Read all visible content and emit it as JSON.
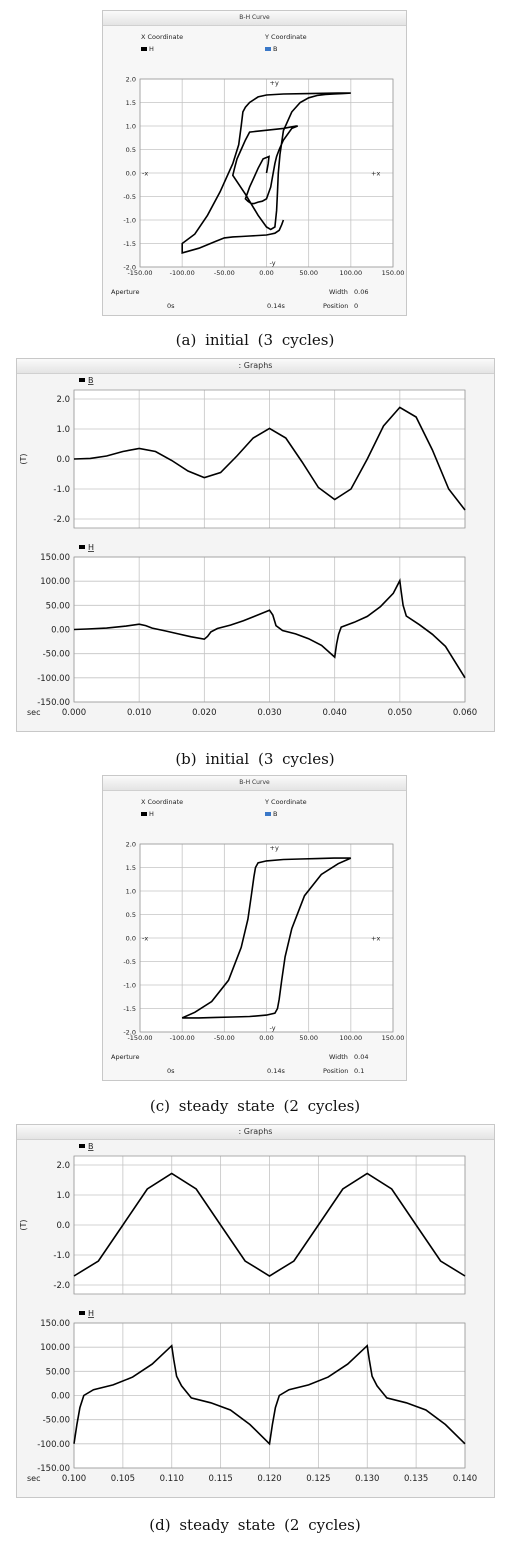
{
  "panels": {
    "a": {
      "header": "B-H Curve",
      "legend": {
        "x_label": "X Coordinate",
        "x_series": "H",
        "y_label": "Y Coordinate",
        "y_series": "B",
        "colors": {
          "H": "#000000",
          "B": "#3a78c8"
        }
      },
      "axis_markers": {
        "pos_y": "+y",
        "neg_y": "-y",
        "pos_x": "+x",
        "neg_x": "-x"
      },
      "footer": {
        "aperture": "Aperture",
        "width_label": "Width",
        "width_value": "0.06",
        "time_start": "0s",
        "time_end": "0.14s",
        "position_label": "Position",
        "position_value": "0"
      },
      "caption": "(a) initial (3 cycles)"
    },
    "b": {
      "header": ": Graphs",
      "top_series": "B",
      "bottom_series": "H",
      "unit_label": "(T)",
      "x_axis_label": "sec",
      "caption": "(b) initial (3 cycles)"
    },
    "c": {
      "header": "B-H Curve",
      "legend": {
        "x_label": "X Coordinate",
        "x_series": "H",
        "y_label": "Y Coordinate",
        "y_series": "B",
        "colors": {
          "H": "#000000",
          "B": "#3a78c8"
        }
      },
      "axis_markers": {
        "pos_y": "+y",
        "neg_y": "-y",
        "pos_x": "+x",
        "neg_x": "-x"
      },
      "footer": {
        "aperture": "Aperture",
        "width_label": "Width",
        "width_value": "0.04",
        "time_start": "0s",
        "time_end": "0.14s",
        "position_label": "Position",
        "position_value": "0.1"
      },
      "caption": "(c) steady state (2 cycles)"
    },
    "d": {
      "header": ": Graphs",
      "top_series": "B",
      "bottom_series": "H",
      "unit_label": "(T)",
      "x_axis_label": "sec",
      "caption": "(d) steady state (2 cycles)"
    }
  },
  "chart_data": [
    {
      "id": "a",
      "type": "line",
      "subtype": "bh-loop",
      "xlim": [
        -150,
        150
      ],
      "ylim": [
        -2.0,
        2.0
      ],
      "x_ticks": [
        "-150.00",
        "-100.00",
        "-50.00",
        "0.00",
        "50.00",
        "100.00",
        "150.00"
      ],
      "y_ticks": [
        "2.0",
        "1.5",
        "1.0",
        "0.5",
        "0.0",
        "-0.5",
        "-1.0",
        "-1.5",
        "-2.0"
      ],
      "grid": true,
      "series": [
        {
          "x": [
            0,
            2,
            3,
            -4,
            -10,
            -15,
            -20,
            -25,
            -22,
            -18,
            -15,
            -10,
            -5,
            0,
            5,
            8,
            10,
            12,
            15,
            20,
            30,
            37,
            35,
            20,
            -5,
            -20,
            -25,
            -30,
            -35,
            -38,
            -40,
            -25,
            -10,
            0,
            5,
            10,
            12,
            13,
            14,
            16,
            20,
            30,
            40,
            50,
            60,
            70,
            80,
            90,
            100,
            85,
            50,
            20,
            0,
            -10,
            -20,
            -25,
            -28,
            -30,
            -33,
            -40,
            -55,
            -70,
            -85,
            -100,
            -100,
            -80,
            -60,
            -50,
            -40,
            -30,
            -20,
            -10,
            0,
            5,
            10,
            15,
            18,
            20
          ],
          "y": [
            0.0,
            0.2,
            0.35,
            0.3,
            0.1,
            -0.1,
            -0.3,
            -0.55,
            -0.6,
            -0.65,
            -0.65,
            -0.62,
            -0.6,
            -0.55,
            -0.3,
            0.0,
            0.2,
            0.35,
            0.5,
            0.7,
            0.95,
            1.0,
            1.0,
            0.95,
            0.9,
            0.87,
            0.7,
            0.5,
            0.3,
            0.1,
            -0.05,
            -0.45,
            -0.9,
            -1.15,
            -1.2,
            -1.15,
            -0.8,
            -0.4,
            0.0,
            0.4,
            0.9,
            1.3,
            1.5,
            1.6,
            1.65,
            1.67,
            1.68,
            1.69,
            1.7,
            1.7,
            1.69,
            1.68,
            1.66,
            1.62,
            1.5,
            1.4,
            1.3,
            1.0,
            0.6,
            0.2,
            -0.4,
            -0.9,
            -1.3,
            -1.5,
            -1.7,
            -1.6,
            -1.45,
            -1.38,
            -1.36,
            -1.35,
            -1.34,
            -1.33,
            -1.32,
            -1.3,
            -1.28,
            -1.22,
            -1.1,
            -1.0
          ]
        }
      ]
    },
    {
      "id": "b_top",
      "type": "line",
      "xlim": [
        0,
        0.06
      ],
      "ylim": [
        -2.3,
        2.3
      ],
      "y_ticks": [
        "2.0",
        "1.0",
        "0.0",
        "-1.0",
        "-2.0"
      ],
      "grid": true,
      "series": [
        {
          "name": "B",
          "x": [
            0,
            0.0025,
            0.005,
            0.0075,
            0.01,
            0.0125,
            0.015,
            0.0175,
            0.02,
            0.0225,
            0.025,
            0.0275,
            0.03,
            0.0325,
            0.035,
            0.0375,
            0.04,
            0.0425,
            0.045,
            0.0475,
            0.05,
            0.0525,
            0.055,
            0.0575,
            0.06
          ],
          "y": [
            0.0,
            0.02,
            0.1,
            0.25,
            0.35,
            0.25,
            -0.05,
            -0.4,
            -0.62,
            -0.45,
            0.1,
            0.7,
            1.02,
            0.7,
            -0.1,
            -0.95,
            -1.35,
            -1.0,
            0.0,
            1.1,
            1.72,
            1.4,
            0.3,
            -1.0,
            -1.7
          ]
        }
      ]
    },
    {
      "id": "b_bottom",
      "type": "line",
      "xlim": [
        0,
        0.06
      ],
      "ylim": [
        -150,
        150
      ],
      "x_ticks": [
        "0.000",
        "0.010",
        "0.020",
        "0.030",
        "0.040",
        "0.050",
        "0.060"
      ],
      "y_ticks": [
        "150.00",
        "100.00",
        "50.00",
        "0.00",
        "-50.00",
        "-100.00",
        "-150.00"
      ],
      "grid": true,
      "series": [
        {
          "name": "H",
          "x": [
            0,
            0.002,
            0.005,
            0.008,
            0.01,
            0.011,
            0.012,
            0.014,
            0.016,
            0.018,
            0.02,
            0.0205,
            0.021,
            0.022,
            0.024,
            0.026,
            0.028,
            0.03,
            0.0305,
            0.031,
            0.032,
            0.034,
            0.036,
            0.038,
            0.04,
            0.0403,
            0.0406,
            0.041,
            0.043,
            0.045,
            0.047,
            0.049,
            0.05,
            0.0502,
            0.0505,
            0.051,
            0.053,
            0.055,
            0.057,
            0.06
          ],
          "y": [
            0,
            1,
            3,
            7,
            11,
            8,
            3,
            -3,
            -9,
            -15,
            -20,
            -14,
            -5,
            2,
            9,
            18,
            29,
            40,
            30,
            8,
            -2,
            -9,
            -19,
            -33,
            -57,
            -30,
            -10,
            5,
            15,
            27,
            47,
            75,
            101,
            80,
            50,
            28,
            10,
            -10,
            -35,
            -100
          ]
        }
      ]
    },
    {
      "id": "c",
      "type": "line",
      "subtype": "bh-loop",
      "xlim": [
        -150,
        150
      ],
      "ylim": [
        -2.0,
        2.0
      ],
      "x_ticks": [
        "-150.00",
        "-100.00",
        "-50.00",
        "0.00",
        "50.00",
        "100.00",
        "150.00"
      ],
      "y_ticks": [
        "2.0",
        "1.5",
        "1.0",
        "0.5",
        "0.0",
        "-0.5",
        "-1.0",
        "-1.5",
        "-2.0"
      ],
      "grid": true,
      "series": [
        {
          "x": [
            100,
            80,
            60,
            40,
            20,
            0,
            -10,
            -13,
            -15,
            -18,
            -22,
            -30,
            -45,
            -65,
            -85,
            -100,
            -80,
            -60,
            -40,
            -20,
            0,
            10,
            13,
            15,
            18,
            22,
            30,
            45,
            65,
            85,
            100
          ],
          "y": [
            1.7,
            1.7,
            1.69,
            1.68,
            1.67,
            1.64,
            1.6,
            1.5,
            1.3,
            0.9,
            0.4,
            -0.2,
            -0.9,
            -1.35,
            -1.58,
            -1.7,
            -1.7,
            -1.69,
            -1.68,
            -1.67,
            -1.64,
            -1.6,
            -1.5,
            -1.3,
            -0.9,
            -0.4,
            0.2,
            0.9,
            1.35,
            1.58,
            1.7
          ]
        }
      ]
    },
    {
      "id": "d_top",
      "type": "line",
      "xlim": [
        0.1,
        0.14
      ],
      "ylim": [
        -2.3,
        2.3
      ],
      "y_ticks": [
        "2.0",
        "1.0",
        "0.0",
        "-1.0",
        "-2.0"
      ],
      "grid": true,
      "series": [
        {
          "name": "B",
          "x": [
            0.1,
            0.1025,
            0.105,
            0.1075,
            0.11,
            0.1125,
            0.115,
            0.1175,
            0.12,
            0.1225,
            0.125,
            0.1275,
            0.13,
            0.1325,
            0.135,
            0.1375,
            0.14
          ],
          "y": [
            -1.7,
            -1.2,
            0.0,
            1.2,
            1.72,
            1.2,
            0.0,
            -1.2,
            -1.7,
            -1.2,
            0.0,
            1.2,
            1.72,
            1.2,
            0.0,
            -1.2,
            -1.7
          ]
        }
      ]
    },
    {
      "id": "d_bottom",
      "type": "line",
      "xlim": [
        0.1,
        0.14
      ],
      "ylim": [
        -150,
        150
      ],
      "x_ticks": [
        "0.100",
        "0.105",
        "0.110",
        "0.115",
        "0.120",
        "0.125",
        "0.130",
        "0.135",
        "0.140"
      ],
      "y_ticks": [
        "150.00",
        "100.00",
        "50.00",
        "0.00",
        "-50.00",
        "-100.00",
        "-150.00"
      ],
      "grid": true,
      "series": [
        {
          "name": "H",
          "x": [
            0.1,
            0.1003,
            0.1006,
            0.101,
            0.102,
            0.104,
            0.106,
            0.108,
            0.11,
            0.1102,
            0.1105,
            0.111,
            0.112,
            0.114,
            0.116,
            0.118,
            0.12,
            0.1203,
            0.1206,
            0.121,
            0.122,
            0.124,
            0.126,
            0.128,
            0.13,
            0.1302,
            0.1305,
            0.131,
            0.132,
            0.134,
            0.136,
            0.138,
            0.14
          ],
          "y": [
            -100,
            -60,
            -25,
            0,
            12,
            22,
            38,
            65,
            103,
            75,
            40,
            20,
            -5,
            -15,
            -30,
            -60,
            -100,
            -60,
            -25,
            0,
            12,
            22,
            38,
            65,
            103,
            75,
            40,
            20,
            -5,
            -15,
            -30,
            -60,
            -100
          ]
        }
      ]
    }
  ]
}
